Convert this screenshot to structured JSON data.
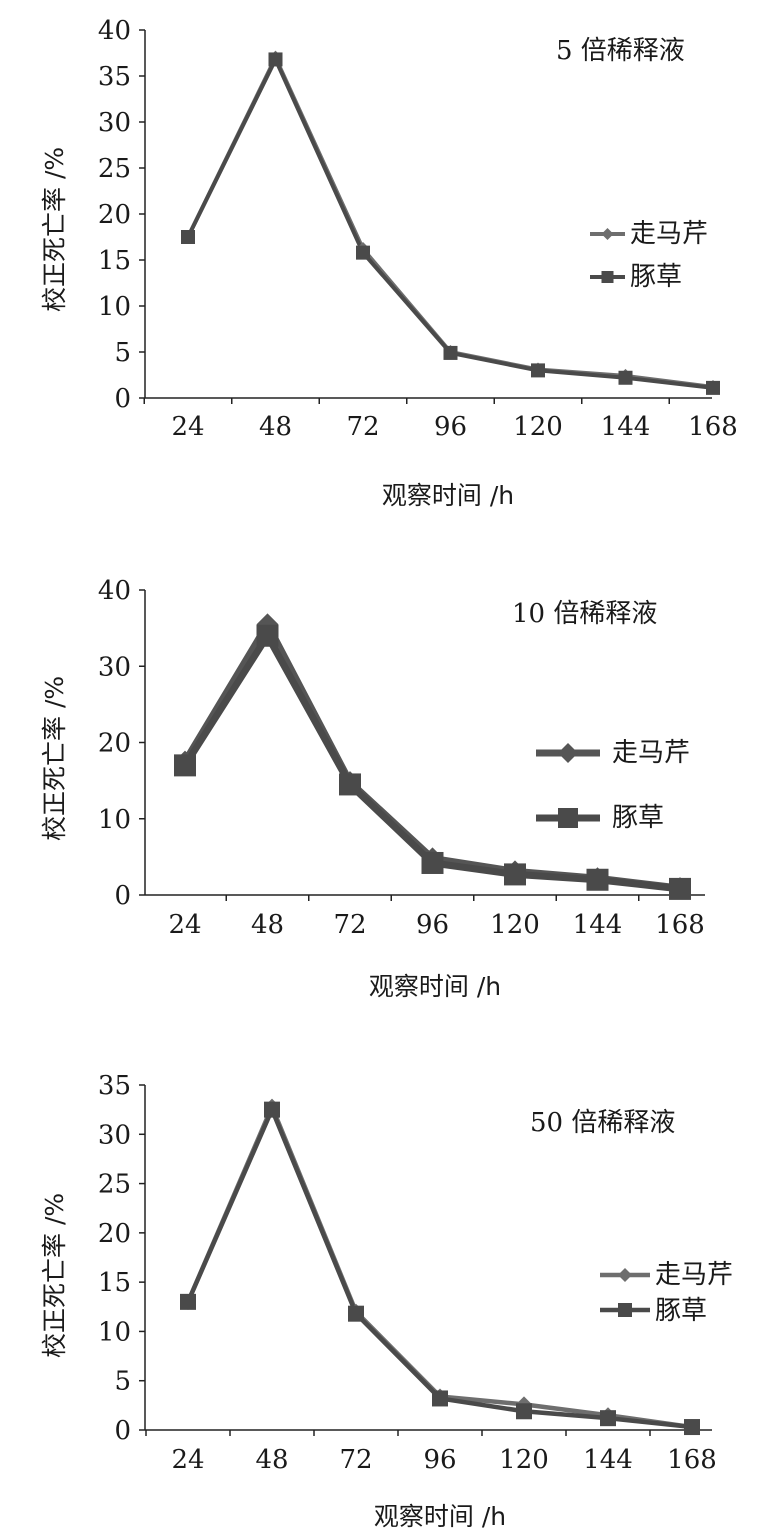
{
  "chart_data": [
    {
      "type": "line",
      "title": "5 倍稀释液",
      "xlabel": "观察时间 /h",
      "ylabel": "校正死亡率 /%",
      "categories": [
        "24",
        "48",
        "72",
        "96",
        "120",
        "144",
        "168"
      ],
      "ylim": [
        0,
        40
      ],
      "yticks": [
        0,
        5,
        10,
        15,
        20,
        25,
        30,
        35,
        40
      ],
      "legend_position": "right",
      "series": [
        {
          "name": "走马芹",
          "marker": "diamond",
          "color": "#6e6e6e",
          "values": [
            17.5,
            37,
            16.2,
            5.0,
            3.1,
            2.4,
            1.2
          ]
        },
        {
          "name": "豚草",
          "marker": "square",
          "color": "#4a4a4a",
          "values": [
            17.5,
            36.8,
            15.8,
            4.9,
            3.0,
            2.2,
            1.1
          ]
        }
      ]
    },
    {
      "type": "line",
      "title": "10 倍稀释液",
      "xlabel": "观察时间 /h",
      "ylabel": "校正死亡率 /%",
      "categories": [
        "24",
        "48",
        "72",
        "96",
        "120",
        "144",
        "168"
      ],
      "ylim": [
        0,
        40
      ],
      "yticks": [
        0,
        10,
        20,
        30,
        40
      ],
      "legend_position": "right",
      "series": [
        {
          "name": "走马芹",
          "marker": "diamond",
          "color": "#555555",
          "values": [
            17.5,
            35.5,
            14.8,
            4.8,
            3.1,
            2.2,
            0.9
          ]
        },
        {
          "name": "豚草",
          "marker": "square",
          "color": "#4a4a4a",
          "values": [
            17.0,
            34.0,
            14.5,
            4.2,
            2.7,
            2.0,
            0.8
          ]
        }
      ]
    },
    {
      "type": "line",
      "title": "50 倍稀释液",
      "xlabel": "观察时间 /h",
      "ylabel": "校正死亡率 /%",
      "categories": [
        "24",
        "48",
        "72",
        "96",
        "120",
        "144",
        "168"
      ],
      "ylim": [
        0,
        35
      ],
      "yticks": [
        0,
        5,
        10,
        15,
        20,
        25,
        30,
        35
      ],
      "legend_position": "right",
      "series": [
        {
          "name": "走马芹",
          "marker": "diamond",
          "color": "#6e6e6e",
          "values": [
            13.0,
            32.8,
            12.0,
            3.4,
            2.6,
            1.5,
            0.3
          ]
        },
        {
          "name": "豚草",
          "marker": "square",
          "color": "#4a4a4a",
          "values": [
            13.0,
            32.5,
            11.8,
            3.2,
            1.9,
            1.2,
            0.3
          ]
        }
      ]
    }
  ]
}
